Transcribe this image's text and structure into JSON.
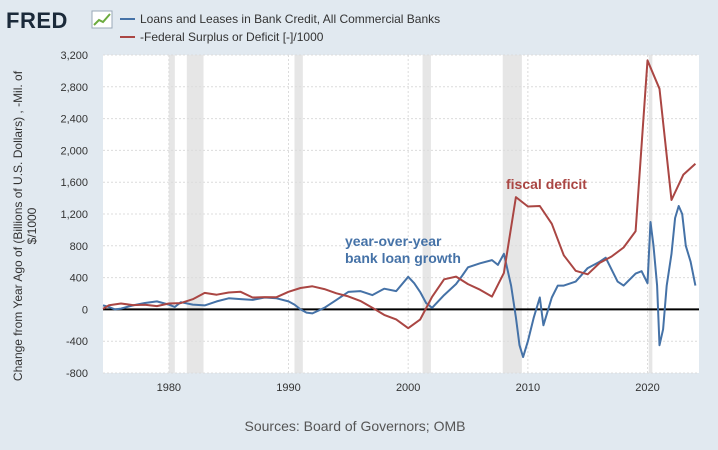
{
  "brand": {
    "logo_text": "FRED"
  },
  "chart_data": {
    "type": "line",
    "xlabel": "",
    "ylabel_lines": [
      "Change from Year Ago of (Billions of U.S. Dollars) , -Mil. of",
      "$/1000"
    ],
    "xlim": [
      1974.5,
      2024.3
    ],
    "ylim": [
      -800,
      3200
    ],
    "yticks": [
      -800,
      -400,
      0,
      400,
      800,
      1200,
      1600,
      2000,
      2400,
      2800,
      3200
    ],
    "ytick_labels": [
      "-800",
      "-400",
      "0",
      "400",
      "800",
      "1,200",
      "1,600",
      "2,000",
      "2,400",
      "2,800",
      "3,200"
    ],
    "xticks": [
      1980,
      1990,
      2000,
      2010,
      2020
    ],
    "xtick_labels": [
      "1980",
      "1990",
      "2000",
      "2010",
      "2020"
    ],
    "grid": true,
    "legend": "top-left",
    "zero_line": true,
    "recessions": [
      [
        1980.0,
        1980.5
      ],
      [
        1981.5,
        1982.9
      ],
      [
        1990.5,
        1991.2
      ],
      [
        2001.2,
        2001.9
      ],
      [
        2007.9,
        2009.5
      ],
      [
        2020.1,
        2020.4
      ]
    ],
    "series": [
      {
        "name": "Loans and Leases in Bank Credit, All Commercial Banks",
        "color": "#4572a7",
        "x": [
          1974.5,
          1975.0,
          1975.5,
          1976.0,
          1977.0,
          1978.0,
          1979.0,
          1980.0,
          1980.5,
          1981.0,
          1982.0,
          1983.0,
          1984.0,
          1985.0,
          1986.0,
          1987.0,
          1988.0,
          1989.0,
          1990.0,
          1990.5,
          1991.0,
          1991.5,
          1992.0,
          1993.0,
          1994.0,
          1995.0,
          1996.0,
          1997.0,
          1998.0,
          1999.0,
          2000.0,
          2000.5,
          2001.0,
          2001.5,
          2002.0,
          2003.0,
          2004.0,
          2004.5,
          2005.0,
          2006.0,
          2007.0,
          2007.5,
          2008.0,
          2008.3,
          2008.6,
          2009.0,
          2009.3,
          2009.6,
          2010.0,
          2010.5,
          2011.0,
          2011.3,
          2011.6,
          2012.0,
          2012.5,
          2013.0,
          2014.0,
          2015.0,
          2016.0,
          2016.5,
          2017.0,
          2017.5,
          2018.0,
          2019.0,
          2019.5,
          2020.0,
          2020.25,
          2020.5,
          2020.8,
          2021.0,
          2021.3,
          2021.6,
          2022.0,
          2022.3,
          2022.6,
          2022.9,
          2023.2,
          2023.6,
          2024.0
        ],
        "y": [
          50,
          30,
          0,
          10,
          50,
          80,
          100,
          60,
          30,
          90,
          60,
          50,
          100,
          140,
          130,
          120,
          150,
          140,
          100,
          60,
          0,
          -40,
          -50,
          20,
          120,
          220,
          230,
          180,
          260,
          230,
          410,
          330,
          220,
          80,
          20,
          180,
          320,
          420,
          530,
          580,
          620,
          560,
          700,
          500,
          300,
          -100,
          -450,
          -600,
          -400,
          -100,
          150,
          -200,
          -50,
          150,
          300,
          300,
          350,
          520,
          600,
          650,
          500,
          350,
          300,
          450,
          480,
          330,
          1100,
          800,
          300,
          -450,
          -250,
          300,
          700,
          1150,
          1300,
          1200,
          800,
          600,
          300
        ]
      },
      {
        "name": "-Federal Surplus or Deficit [-]/1000",
        "color": "#aa4643",
        "x": [
          1974.5,
          1975.0,
          1976.0,
          1977.0,
          1978.0,
          1979.0,
          1980.0,
          1981.0,
          1982.0,
          1983.0,
          1984.0,
          1985.0,
          1986.0,
          1987.0,
          1988.0,
          1989.0,
          1990.0,
          1991.0,
          1992.0,
          1993.0,
          1994.0,
          1995.0,
          1996.0,
          1997.0,
          1998.0,
          1999.0,
          2000.0,
          2001.0,
          2002.0,
          2003.0,
          2004.0,
          2005.0,
          2006.0,
          2007.0,
          2008.0,
          2009.0,
          2010.0,
          2011.0,
          2012.0,
          2013.0,
          2014.0,
          2015.0,
          2016.0,
          2017.0,
          2018.0,
          2019.0,
          2020.0,
          2021.0,
          2022.0,
          2023.0,
          2024.0
        ],
        "y": [
          6,
          53,
          74,
          54,
          59,
          41,
          74,
          79,
          128,
          208,
          185,
          212,
          221,
          150,
          155,
          153,
          221,
          269,
          290,
          255,
          203,
          164,
          107,
          22,
          -69,
          -126,
          -236,
          -128,
          158,
          378,
          413,
          318,
          248,
          161,
          459,
          1413,
          1294,
          1300,
          1077,
          680,
          485,
          442,
          585,
          665,
          779,
          984,
          3132,
          2775,
          1376,
          1695,
          1833
        ]
      }
    ],
    "annotations": [
      {
        "lines": [
          "year-over-year",
          "bank loan growth"
        ],
        "color": "#4572a7"
      },
      {
        "lines": [
          "fiscal deficit"
        ],
        "color": "#aa4643"
      }
    ]
  },
  "footer": {
    "source": "Sources: Board of Governors; OMB"
  }
}
